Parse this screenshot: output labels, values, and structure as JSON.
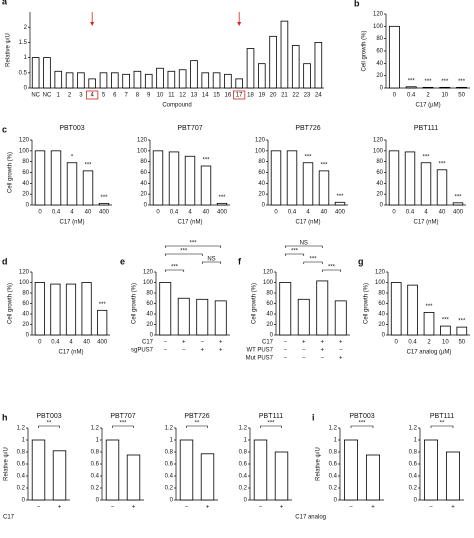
{
  "chart_data": [
    {
      "type": "bar",
      "panel": "a",
      "y_label": "Relative ψ/U",
      "x_label": "Compound",
      "color": "#ffffff",
      "categories": [
        "NC",
        "NC",
        "1",
        "2",
        "3",
        "4",
        "5",
        "6",
        "7",
        "8",
        "9",
        "10",
        "11",
        "12",
        "13",
        "14",
        "15",
        "16",
        "17",
        "18",
        "19",
        "20",
        "21",
        "22",
        "23",
        "24"
      ],
      "values": [
        1.0,
        1.0,
        0.55,
        0.5,
        0.5,
        0.3,
        0.5,
        0.5,
        0.45,
        0.55,
        0.45,
        0.65,
        0.55,
        0.6,
        0.9,
        0.5,
        0.5,
        0.45,
        0.3,
        1.3,
        0.8,
        1.7,
        2.2,
        1.4,
        0.8,
        1.5
      ],
      "ylim": [
        0,
        2.5
      ],
      "yticks": [
        0,
        0.5,
        1,
        1.5,
        2
      ],
      "highlight_indices": [
        5,
        18
      ],
      "highlight_color": "#e0201b"
    },
    {
      "type": "bar",
      "panel": "b",
      "y_label": "Cell growth (%)",
      "x_label": "C17 (µM)",
      "color": "#ffffff",
      "categories": [
        "0",
        "0.4",
        "2",
        "10",
        "50"
      ],
      "values": [
        100,
        2,
        1,
        1,
        1
      ],
      "annotations": [
        null,
        "***",
        "***",
        "***",
        "***"
      ],
      "ylim": [
        0,
        120
      ],
      "yticks": [
        0,
        20,
        40,
        60,
        80,
        100,
        120
      ]
    },
    {
      "type": "bar",
      "panel": "c",
      "title": "PBT003",
      "y_label": "Cell growth (%)",
      "x_label": "C17 (nM)",
      "color": "#ffffff",
      "categories": [
        "0",
        "0.4",
        "4",
        "40",
        "400"
      ],
      "values": [
        100,
        100,
        78,
        63,
        3
      ],
      "annotations": [
        null,
        null,
        "*",
        "***",
        "***"
      ],
      "ylim": [
        0,
        120
      ],
      "yticks": [
        0,
        20,
        40,
        60,
        80,
        100,
        120
      ]
    },
    {
      "type": "bar",
      "title": "PBT707",
      "x_label": "C17 (nM)",
      "color": "#ffffff",
      "categories": [
        "0",
        "0.4",
        "4",
        "40",
        "400"
      ],
      "values": [
        100,
        98,
        90,
        72,
        3
      ],
      "annotations": [
        null,
        null,
        null,
        "***",
        "***"
      ],
      "ylim": [
        0,
        120
      ],
      "yticks": [
        0,
        20,
        40,
        60,
        80,
        100,
        120
      ]
    },
    {
      "type": "bar",
      "title": "PBT726",
      "x_label": "C17 (nM)",
      "color": "#ffffff",
      "categories": [
        "0",
        "0.4",
        "4",
        "40",
        "400"
      ],
      "values": [
        100,
        100,
        78,
        63,
        5
      ],
      "annotations": [
        null,
        null,
        "***",
        "***",
        "***"
      ],
      "ylim": [
        0,
        120
      ],
      "yticks": [
        0,
        20,
        40,
        60,
        80,
        100,
        120
      ]
    },
    {
      "type": "bar",
      "title": "PBT111",
      "x_label": "C17 (nM)",
      "color": "#ffffff",
      "categories": [
        "0",
        "0.4",
        "4",
        "40",
        "400"
      ],
      "values": [
        100,
        98,
        78,
        65,
        4
      ],
      "annotations": [
        null,
        null,
        "***",
        "***",
        "***"
      ],
      "ylim": [
        0,
        120
      ],
      "yticks": [
        0,
        20,
        40,
        60,
        80,
        100,
        120
      ]
    },
    {
      "type": "bar",
      "panel": "d",
      "y_label": "Cell growth (%)",
      "x_label": "C17 (nM)",
      "color": "#ffffff",
      "categories": [
        "0",
        "0.4",
        "4",
        "40",
        "400"
      ],
      "values": [
        100,
        97,
        97,
        100,
        47
      ],
      "annotations": [
        null,
        null,
        null,
        null,
        "***"
      ],
      "ylim": [
        0,
        120
      ],
      "yticks": [
        0,
        20,
        40,
        60,
        80,
        100,
        120
      ]
    },
    {
      "type": "bar",
      "panel": "e",
      "y_label": "Cell growth (%)",
      "color": "#ffffff",
      "values": [
        100,
        70,
        68,
        65
      ],
      "ylim": [
        0,
        120
      ],
      "yticks": [
        0,
        20,
        40,
        60,
        80,
        100,
        120
      ],
      "condition_rows": [
        {
          "label": "C17",
          "marks": [
            "−",
            "+",
            "−",
            "+"
          ]
        },
        {
          "label": "sgPUS7",
          "marks": [
            "−",
            "−",
            "+",
            "+"
          ]
        }
      ],
      "comparisons": [
        {
          "from": 0,
          "to": 1,
          "label": "***"
        },
        {
          "from": 2,
          "to": 3,
          "label": "NS"
        },
        {
          "from": 0,
          "to": 2,
          "label": "***"
        },
        {
          "from": 0,
          "to": 3,
          "label": "***"
        }
      ]
    },
    {
      "type": "bar",
      "panel": "f",
      "y_label": "Cell growth (%)",
      "color": "#ffffff",
      "values": [
        100,
        68,
        103,
        65
      ],
      "ylim": [
        0,
        120
      ],
      "yticks": [
        0,
        20,
        40,
        60,
        80,
        100,
        120
      ],
      "condition_rows": [
        {
          "label": "C17",
          "marks": [
            "−",
            "+",
            "+",
            "+"
          ]
        },
        {
          "label": "WT PUS7",
          "marks": [
            "−",
            "−",
            "+",
            "−"
          ]
        },
        {
          "label": "Mut PUS7",
          "marks": [
            "−",
            "−",
            "−",
            "+"
          ]
        }
      ],
      "comparisons": [
        {
          "from": 2,
          "to": 3,
          "label": "***"
        },
        {
          "from": 1,
          "to": 2,
          "label": "***"
        },
        {
          "from": 0,
          "to": 1,
          "label": "***"
        },
        {
          "from": 0,
          "to": 2,
          "label": "NS"
        }
      ]
    },
    {
      "type": "bar",
      "panel": "g",
      "y_label": "Cell growth (%)",
      "x_label": "C17 analog (µM)",
      "color": "#ffffff",
      "categories": [
        "0",
        "0.4",
        "2",
        "10",
        "50"
      ],
      "values": [
        100,
        95,
        43,
        17,
        15
      ],
      "annotations": [
        null,
        null,
        "***",
        "***",
        "***"
      ],
      "ylim": [
        0,
        120
      ],
      "yticks": [
        0,
        20,
        40,
        60,
        80,
        100,
        120
      ]
    },
    {
      "type": "bar",
      "panel": "h",
      "title": "PBT003",
      "y_label": "Relative ψ/U",
      "x_label": "C17",
      "color": "#ffffff",
      "categories": [
        "−",
        "+"
      ],
      "values": [
        1.0,
        0.82
      ],
      "ylim": [
        0,
        1.2
      ],
      "yticks": [
        0,
        0.2,
        0.4,
        0.6,
        0.8,
        1,
        1.2
      ],
      "comparisons": [
        {
          "from": 0,
          "to": 1,
          "label": "**"
        }
      ]
    },
    {
      "type": "bar",
      "title": "PBT707",
      "color": "#ffffff",
      "categories": [
        "−",
        "+"
      ],
      "values": [
        1.0,
        0.75
      ],
      "ylim": [
        0,
        1.2
      ],
      "yticks": [
        0,
        0.2,
        0.4,
        0.6,
        0.8,
        1,
        1.2
      ],
      "comparisons": [
        {
          "from": 0,
          "to": 1,
          "label": "***"
        }
      ]
    },
    {
      "type": "bar",
      "title": "PBT726",
      "color": "#ffffff",
      "categories": [
        "−",
        "+"
      ],
      "values": [
        1.0,
        0.77
      ],
      "ylim": [
        0,
        1.2
      ],
      "yticks": [
        0,
        0.2,
        0.4,
        0.6,
        0.8,
        1,
        1.2
      ],
      "comparisons": [
        {
          "from": 0,
          "to": 1,
          "label": "**"
        }
      ]
    },
    {
      "type": "bar",
      "title": "PBT111",
      "color": "#ffffff",
      "categories": [
        "−",
        "+"
      ],
      "values": [
        1.0,
        0.8
      ],
      "ylim": [
        0,
        1.2
      ],
      "yticks": [
        0,
        0.2,
        0.4,
        0.6,
        0.8,
        1,
        1.2
      ],
      "comparisons": [
        {
          "from": 0,
          "to": 1,
          "label": "***"
        }
      ]
    },
    {
      "type": "bar",
      "panel": "i",
      "title": "PBT003",
      "y_label": "Relative ψ/U",
      "x_label": "C17 analog",
      "color": "#ffffff",
      "categories": [
        "−",
        "+"
      ],
      "values": [
        1.0,
        0.75
      ],
      "ylim": [
        0,
        1.2
      ],
      "yticks": [
        0,
        0.2,
        0.4,
        0.6,
        0.8,
        1,
        1.2
      ],
      "comparisons": [
        {
          "from": 0,
          "to": 1,
          "label": "***"
        }
      ]
    },
    {
      "type": "bar",
      "title": "PBT111",
      "color": "#ffffff",
      "categories": [
        "−",
        "+"
      ],
      "values": [
        1.0,
        0.8
      ],
      "ylim": [
        0,
        1.2
      ],
      "yticks": [
        0,
        0.2,
        0.4,
        0.6,
        0.8,
        1,
        1.2
      ],
      "comparisons": [
        {
          "from": 0,
          "to": 1,
          "label": "**"
        }
      ]
    }
  ]
}
